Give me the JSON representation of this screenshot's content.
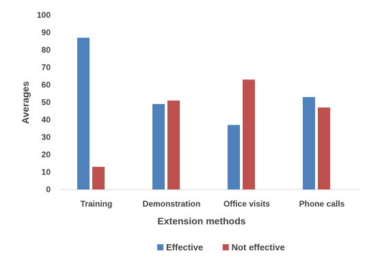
{
  "chart_data": {
    "type": "bar",
    "title": "",
    "xlabel": "Extension methods",
    "ylabel": "Averages",
    "ylim": [
      0,
      100
    ],
    "yticks": [
      0,
      10,
      20,
      30,
      40,
      50,
      60,
      70,
      80,
      90,
      100
    ],
    "categories": [
      "Training",
      "Demonstration",
      "Office visits",
      "Phone calls"
    ],
    "series": [
      {
        "name": "Effective",
        "color": "#4f81bd",
        "values": [
          87,
          49,
          37,
          53
        ]
      },
      {
        "name": "Not effective",
        "color": "#c0504d",
        "values": [
          13,
          51,
          63,
          47
        ]
      }
    ],
    "grid": false,
    "legend": "bottom-center"
  }
}
